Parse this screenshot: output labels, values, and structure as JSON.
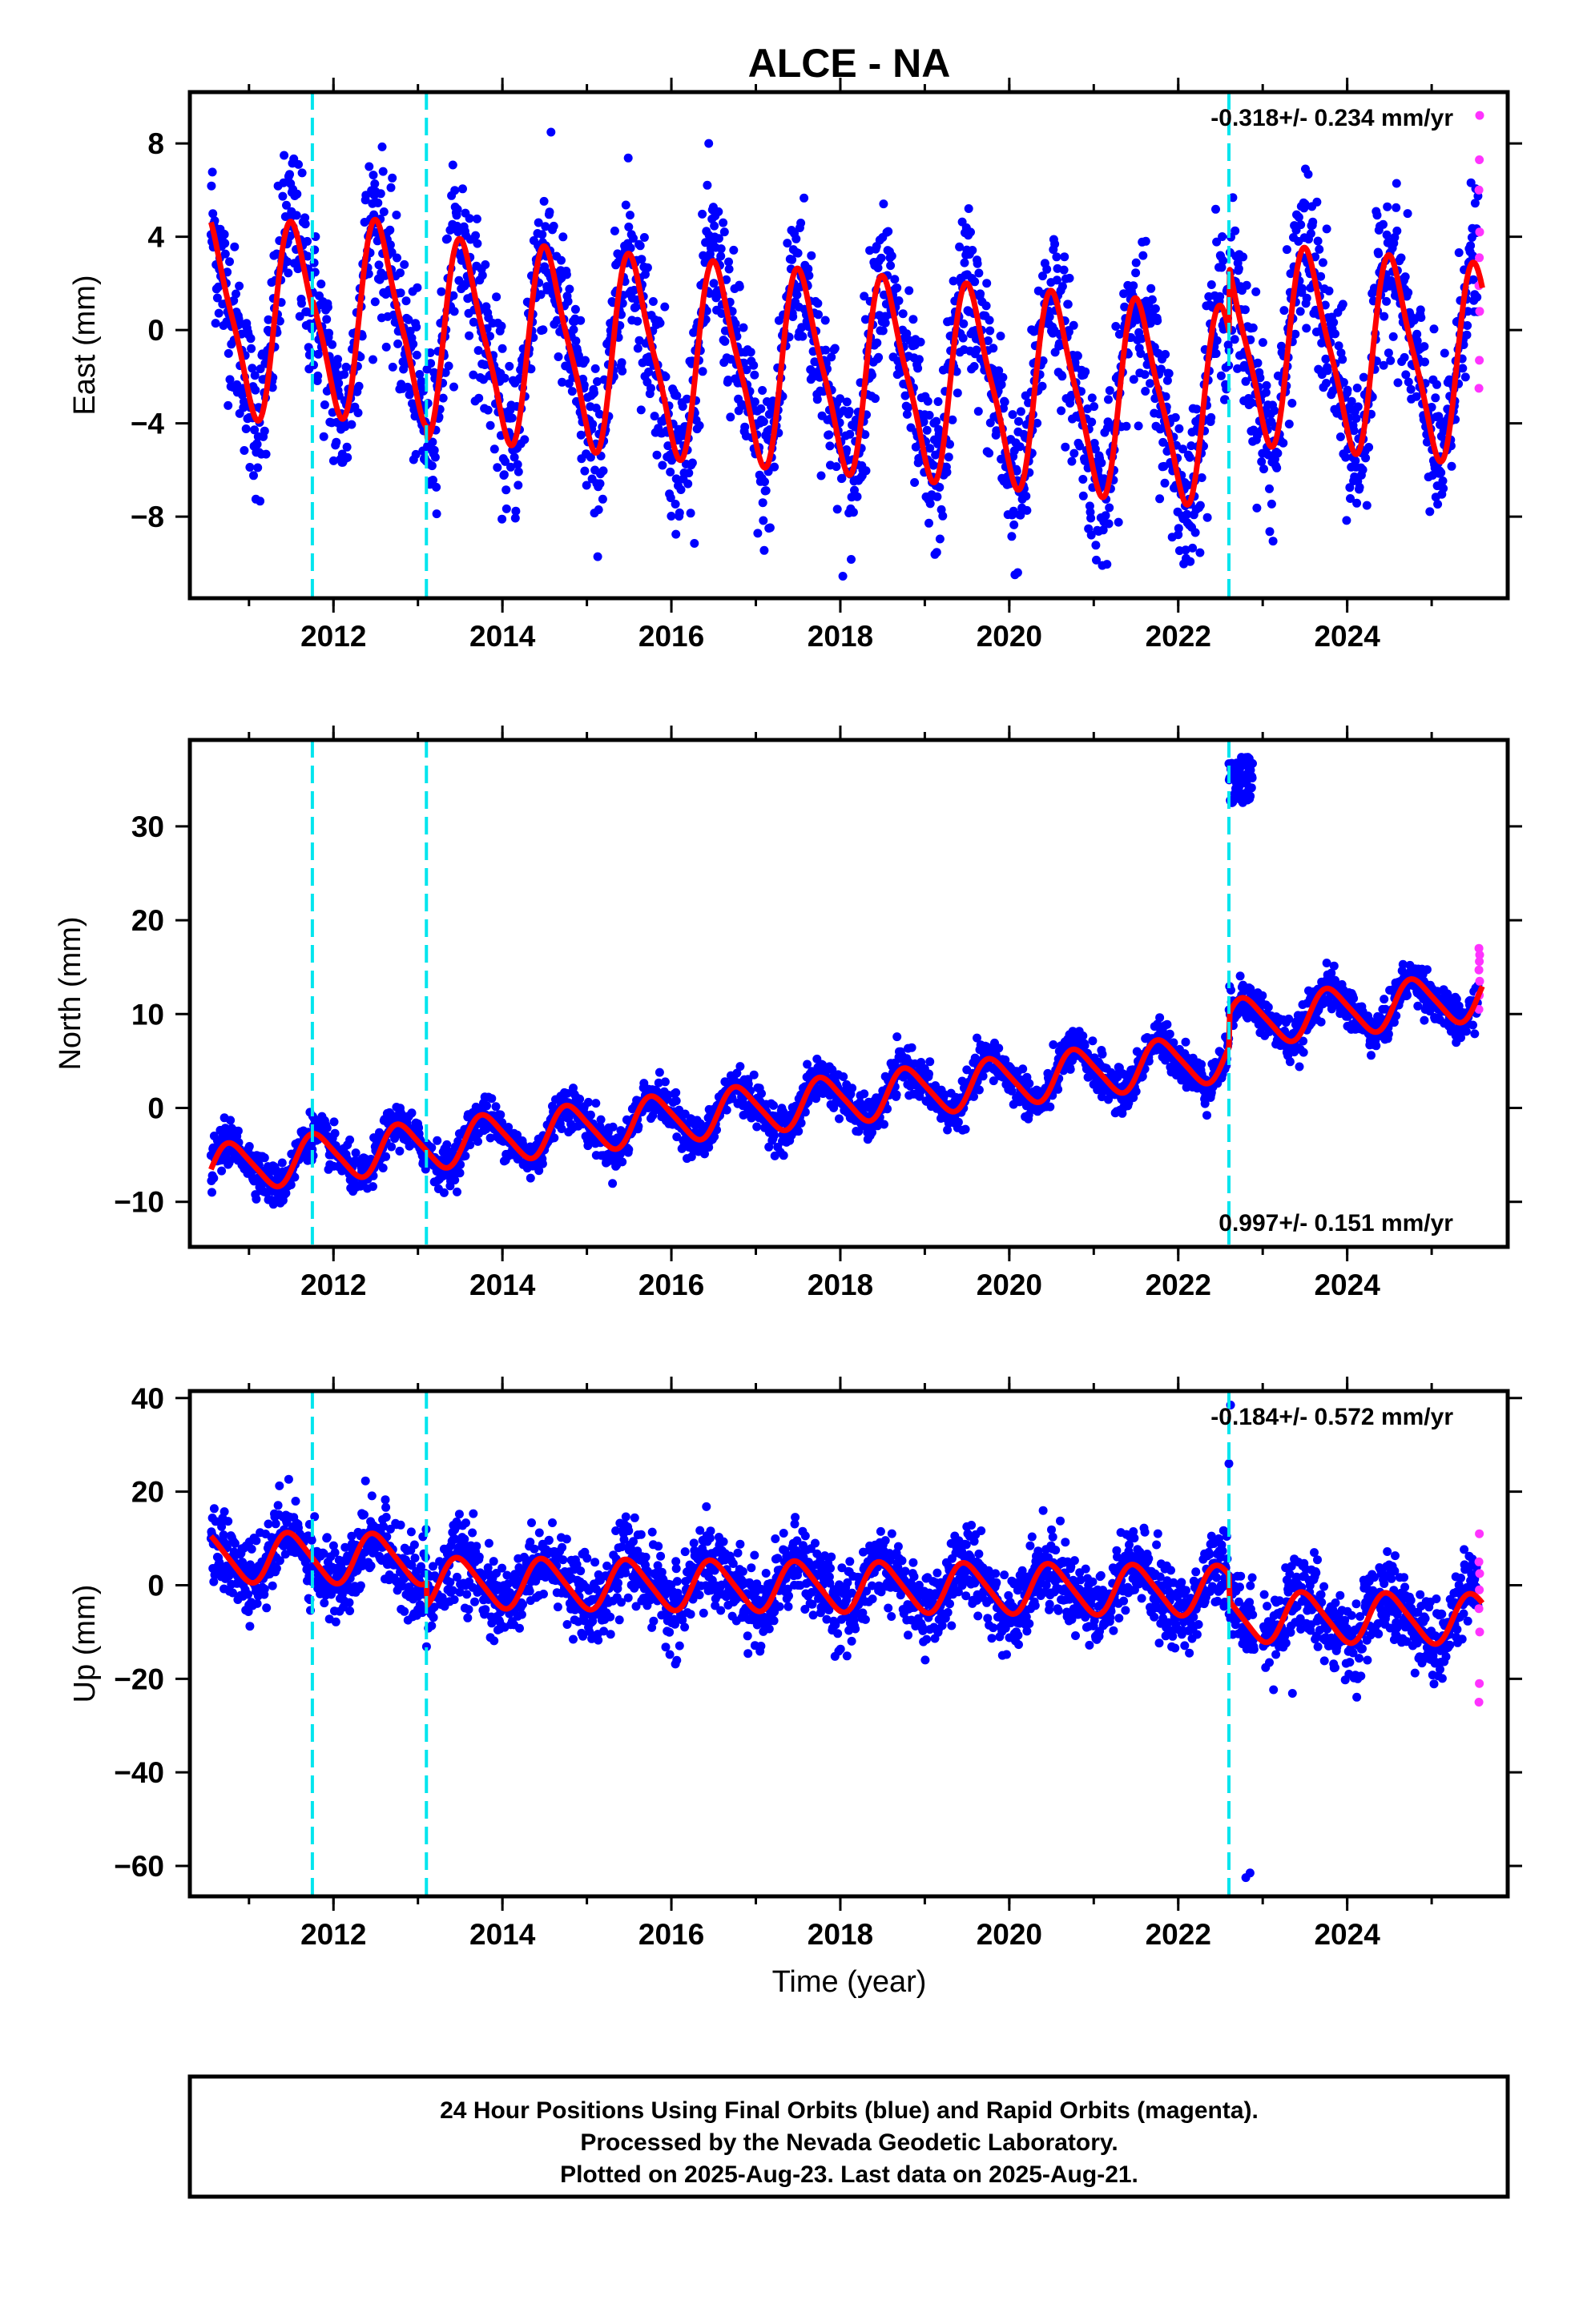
{
  "chart_data": {
    "title": "ALCE - NA",
    "colors": {
      "final_orbits": "#0000ff",
      "rapid_orbits": "#ff33ff",
      "model": "#ff0000",
      "event_lines": "#00e5ee"
    },
    "event_lines_year": [
      2011.75,
      2013.1,
      2022.6
    ],
    "xlabel": "Time (year)",
    "xlim": [
      2010.3,
      2025.9
    ],
    "x_ticks": [
      "2012",
      "2014",
      "2016",
      "2018",
      "2020",
      "2022",
      "2024"
    ],
    "panels": [
      {
        "type": "scatter",
        "ylabel": "East (mm)",
        "ylim": [
          -11.5,
          10.2
        ],
        "y_ticks": [
          "8",
          "4",
          "0",
          "−4",
          "−8"
        ],
        "rate_label": "-0.318+/- 0.234 mm/yr",
        "rate_position": "top-right",
        "model": {
          "trend": 0.6,
          "slope": -0.318,
          "amp_annual": 4.0,
          "amp_semi": 0.9,
          "phase": 0.3,
          "offsets": [
            {
              "year": 2011.75,
              "value": 0.4
            },
            {
              "year": 2013.1,
              "value": -0.5
            },
            {
              "year": 2022.6,
              "value": 2.8
            }
          ]
        },
        "scatter_sd": 1.7,
        "rapid_points": [
          -2.5,
          -1.3,
          0.8,
          1.9,
          3.1,
          4.2,
          6.0,
          7.3,
          9.2
        ]
      },
      {
        "type": "scatter",
        "ylabel": "North (mm)",
        "ylim": [
          -14.8,
          39.2
        ],
        "y_ticks": [
          "30",
          "20",
          "10",
          "0",
          "−10"
        ],
        "rate_label": "0.997+/- 0.151 mm/yr",
        "rate_position": "bottom-right",
        "model": {
          "trend": -6.5,
          "slope": 0.997,
          "amp_annual": 2.5,
          "amp_semi": 0.4,
          "phase": 0.55,
          "offsets": [
            {
              "year": 2011.75,
              "value": 0.0
            },
            {
              "year": 2013.1,
              "value": 0.0
            },
            {
              "year": 2022.6,
              "value": 3.5
            }
          ]
        },
        "scatter_sd": 1.1,
        "outlier_cluster": {
          "start": 2022.6,
          "end": 2022.88,
          "center": 35.0,
          "spread": 2.5
        },
        "rapid_points": [
          10.5,
          12.0,
          13.5,
          14.7,
          15.6,
          16.3,
          17.0
        ]
      },
      {
        "type": "scatter",
        "ylabel": "Up (mm)",
        "ylim": [
          -66.5,
          41.5
        ],
        "y_ticks": [
          "40",
          "20",
          "0",
          "−20",
          "−40",
          "−60"
        ],
        "rate_label": "-0.184+/- 0.572 mm/yr",
        "rate_position": "top-right",
        "model": {
          "trend": 6.0,
          "slope": -0.184,
          "amp_annual": 5.2,
          "amp_semi": 0.8,
          "phase": 0.25,
          "offsets": [
            {
              "year": 2011.75,
              "value": 0.0
            },
            {
              "year": 2013.1,
              "value": -5.0
            },
            {
              "year": 2022.6,
              "value": -5.5
            }
          ]
        },
        "scatter_sd": 4.2,
        "outliers": [
          {
            "x": 2022.6,
            "y": 26.0
          },
          {
            "x": 2022.62,
            "y": 38.5
          },
          {
            "x": 2022.85,
            "y": -61.5
          },
          {
            "x": 2022.8,
            "y": -62.5
          }
        ],
        "rapid_points": [
          -25.0,
          -21.0,
          -10.0,
          -5.0,
          -1.0,
          2.5,
          5.0,
          11.0
        ]
      }
    ]
  },
  "footer": {
    "line1": "24 Hour Positions Using Final Orbits (blue) and Rapid Orbits (magenta).",
    "line2": "Processed by the Nevada Geodetic Laboratory.",
    "line3": "Plotted on 2025-Aug-23. Last data on 2025-Aug-21."
  }
}
